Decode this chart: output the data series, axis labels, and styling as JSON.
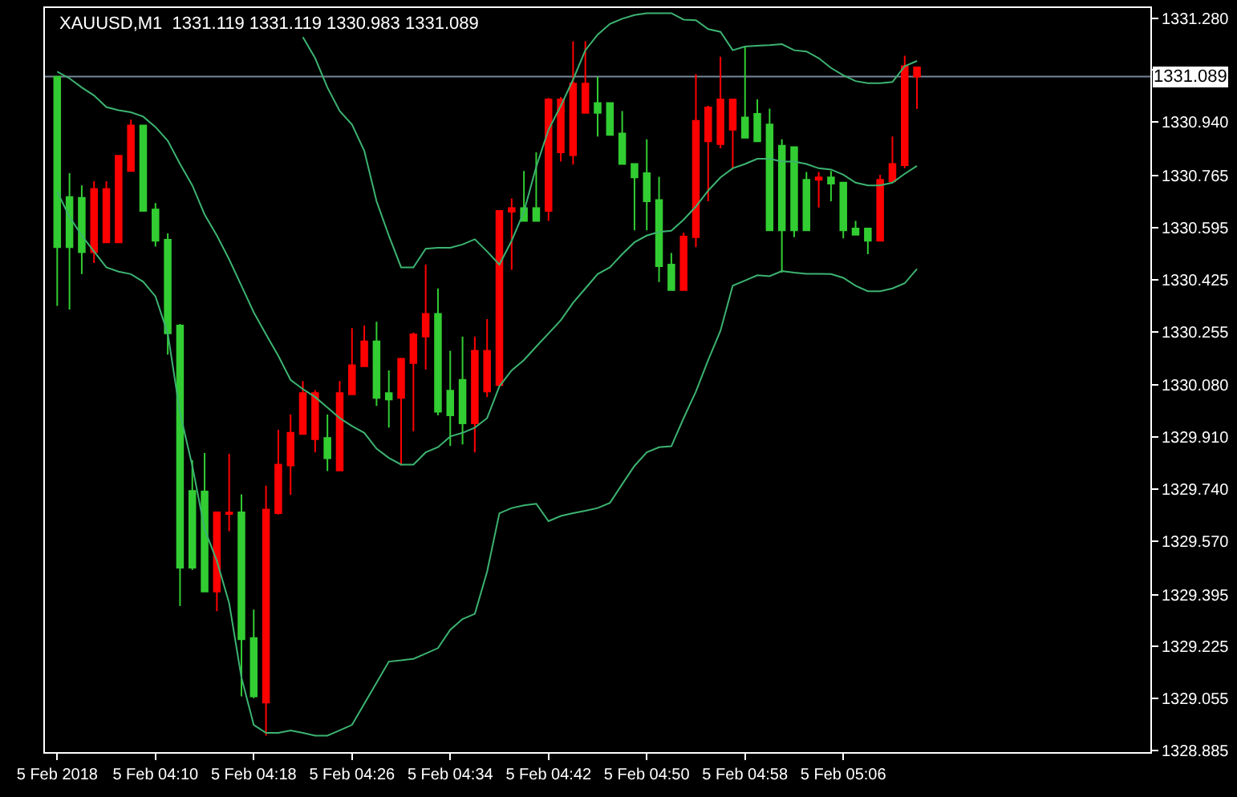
{
  "chart_data": {
    "type": "candlestick",
    "title": "XAUUSD,M1  1331.119 1331.119 1330.983 1331.089",
    "x": [
      "2018-02-05T04:02",
      "2018-02-05T04:03",
      "2018-02-05T04:04",
      "2018-02-05T04:05",
      "2018-02-05T04:06",
      "2018-02-05T04:07",
      "2018-02-05T04:08",
      "2018-02-05T04:09",
      "2018-02-05T04:10",
      "2018-02-05T04:11",
      "2018-02-05T04:12",
      "2018-02-05T04:13",
      "2018-02-05T04:14",
      "2018-02-05T04:15",
      "2018-02-05T04:16",
      "2018-02-05T04:17",
      "2018-02-05T04:18",
      "2018-02-05T04:19",
      "2018-02-05T04:20",
      "2018-02-05T04:21",
      "2018-02-05T04:22",
      "2018-02-05T04:23",
      "2018-02-05T04:24",
      "2018-02-05T04:25",
      "2018-02-05T04:26",
      "2018-02-05T04:27",
      "2018-02-05T04:28",
      "2018-02-05T04:29",
      "2018-02-05T04:30",
      "2018-02-05T04:31",
      "2018-02-05T04:32",
      "2018-02-05T04:33",
      "2018-02-05T04:34",
      "2018-02-05T04:35",
      "2018-02-05T04:36",
      "2018-02-05T04:37",
      "2018-02-05T04:38",
      "2018-02-05T04:39",
      "2018-02-05T04:40",
      "2018-02-05T04:41",
      "2018-02-05T04:42",
      "2018-02-05T04:43",
      "2018-02-05T04:44",
      "2018-02-05T04:45",
      "2018-02-05T04:46",
      "2018-02-05T04:47",
      "2018-02-05T04:48",
      "2018-02-05T04:49",
      "2018-02-05T04:50",
      "2018-02-05T04:51",
      "2018-02-05T04:52",
      "2018-02-05T04:53",
      "2018-02-05T04:54",
      "2018-02-05T04:55",
      "2018-02-05T04:56",
      "2018-02-05T04:57",
      "2018-02-05T04:58",
      "2018-02-05T04:59",
      "2018-02-05T05:00",
      "2018-02-05T05:01",
      "2018-02-05T05:02",
      "2018-02-05T05:03",
      "2018-02-05T05:04",
      "2018-02-05T05:05",
      "2018-02-05T05:06",
      "2018-02-05T05:07",
      "2018-02-05T05:08",
      "2018-02-05T05:09",
      "2018-02-05T05:10",
      "2018-02-05T05:11",
      "2018-02-05T05:12"
    ],
    "ohlc": [
      [
        1330.531,
        1331.088,
        1330.339,
        1331.088
      ],
      [
        1330.531,
        1330.773,
        1330.327,
        1330.695
      ],
      [
        1330.515,
        1330.733,
        1330.443,
        1330.692
      ],
      [
        1330.721,
        1330.747,
        1330.479,
        1330.515
      ],
      [
        1330.721,
        1330.747,
        1330.547,
        1330.547
      ],
      [
        1330.83,
        1330.83,
        1330.547,
        1330.547
      ],
      [
        1330.929,
        1330.948,
        1330.78,
        1330.78
      ],
      [
        1330.65,
        1330.929,
        1330.65,
        1330.929
      ],
      [
        1330.552,
        1330.675,
        1330.533,
        1330.654
      ],
      [
        1330.249,
        1330.576,
        1330.18,
        1330.555
      ],
      [
        1329.483,
        1330.28,
        1329.358,
        1330.275
      ],
      [
        1329.483,
        1329.834,
        1329.476,
        1329.734
      ],
      [
        1329.405,
        1329.858,
        1329.405,
        1329.732
      ],
      [
        1329.664,
        1329.664,
        1329.341,
        1329.405
      ],
      [
        1329.663,
        1329.855,
        1329.602,
        1329.659
      ],
      [
        1329.249,
        1329.723,
        1329.062,
        1329.664
      ],
      [
        1329.062,
        1329.346,
        1329.056,
        1329.253
      ],
      [
        1329.673,
        1329.751,
        1328.934,
        1329.042
      ],
      [
        1329.82,
        1329.934,
        1329.657,
        1329.661
      ],
      [
        1329.924,
        1329.984,
        1329.721,
        1329.817
      ],
      [
        1330.054,
        1330.093,
        1329.92,
        1329.92
      ],
      [
        1330.054,
        1330.064,
        1329.86,
        1329.903
      ],
      [
        1329.841,
        1329.984,
        1329.799,
        1329.907
      ],
      [
        1330.054,
        1330.093,
        1329.799,
        1329.801
      ],
      [
        1330.145,
        1330.266,
        1330.05,
        1330.05
      ],
      [
        1330.223,
        1330.275,
        1330.142,
        1330.142
      ],
      [
        1330.038,
        1330.287,
        1330.012,
        1330.223
      ],
      [
        1330.033,
        1330.128,
        1329.941,
        1330.054
      ],
      [
        1330.166,
        1330.169,
        1329.817,
        1330.038
      ],
      [
        1330.246,
        1330.252,
        1329.929,
        1330.152
      ],
      [
        1330.313,
        1330.474,
        1330.131,
        1330.239
      ],
      [
        1329.993,
        1330.396,
        1329.981,
        1330.313
      ],
      [
        1329.981,
        1330.192,
        1329.881,
        1330.062
      ],
      [
        1329.955,
        1330.239,
        1329.886,
        1330.097
      ],
      [
        1330.192,
        1330.239,
        1329.86,
        1329.955
      ],
      [
        1330.192,
        1330.296,
        1330.041,
        1330.059
      ],
      [
        1330.65,
        1330.65,
        1330.08,
        1330.08
      ],
      [
        1330.659,
        1330.69,
        1330.457,
        1330.647
      ],
      [
        1330.617,
        1330.78,
        1330.617,
        1330.659
      ],
      [
        1330.617,
        1330.841,
        1330.617,
        1330.659
      ],
      [
        1331.014,
        1331.019,
        1330.617,
        1330.65
      ],
      [
        1331.014,
        1331.022,
        1330.811,
        1330.841
      ],
      [
        1331.066,
        1331.204,
        1330.801,
        1330.832
      ],
      [
        1331.066,
        1331.204,
        1330.97,
        1330.97
      ],
      [
        1330.97,
        1331.088,
        1330.893,
        1331.002
      ],
      [
        1330.898,
        1331.002,
        1330.898,
        1331.002
      ],
      [
        1330.803,
        1330.976,
        1330.803,
        1330.903
      ],
      [
        1330.759,
        1330.803,
        1330.586,
        1330.803
      ],
      [
        1330.681,
        1330.884,
        1330.586,
        1330.773
      ],
      [
        1330.469,
        1330.761,
        1330.417,
        1330.685
      ],
      [
        1330.391,
        1330.512,
        1330.391,
        1330.474
      ],
      [
        1330.566,
        1330.578,
        1330.391,
        1330.391
      ],
      [
        1330.944,
        1331.097,
        1330.531,
        1330.564
      ],
      [
        1330.988,
        1330.993,
        1330.681,
        1330.877
      ],
      [
        1331.014,
        1331.154,
        1330.854,
        1330.868
      ],
      [
        1331.014,
        1331.014,
        1330.789,
        1330.915
      ],
      [
        1330.889,
        1331.187,
        1330.889,
        1330.955
      ],
      [
        1330.877,
        1331.014,
        1330.877,
        1330.967
      ],
      [
        1330.586,
        1330.984,
        1330.586,
        1330.932
      ],
      [
        1330.586,
        1330.884,
        1330.448,
        1330.863
      ],
      [
        1330.586,
        1330.86,
        1330.564,
        1330.858
      ],
      [
        1330.586,
        1330.777,
        1330.586,
        1330.751
      ],
      [
        1330.759,
        1330.777,
        1330.661,
        1330.751
      ],
      [
        1330.739,
        1330.78,
        1330.681,
        1330.759
      ],
      [
        1330.586,
        1330.742,
        1330.56,
        1330.742
      ],
      [
        1330.572,
        1330.617,
        1330.572,
        1330.592
      ],
      [
        1330.552,
        1330.592,
        1330.508,
        1330.592
      ],
      [
        1330.751,
        1330.768,
        1330.552,
        1330.552
      ],
      [
        1330.803,
        1330.893,
        1330.742,
        1330.747
      ],
      [
        1331.123,
        1331.157,
        1330.789,
        1330.799
      ],
      [
        1331.119,
        1331.119,
        1330.983,
        1331.089
      ]
    ],
    "colors": [
      "#32cd32",
      "#32cd32",
      "#32cd32",
      "#ff0000",
      "#ff0000",
      "#ff0000",
      "#ff0000",
      "#32cd32",
      "#32cd32",
      "#32cd32",
      "#32cd32",
      "#32cd32",
      "#32cd32",
      "#ff0000",
      "#ff0000",
      "#32cd32",
      "#32cd32",
      "#ff0000",
      "#ff0000",
      "#ff0000",
      "#ff0000",
      "#ff0000",
      "#32cd32",
      "#ff0000",
      "#ff0000",
      "#ff0000",
      "#32cd32",
      "#32cd32",
      "#ff0000",
      "#ff0000",
      "#ff0000",
      "#32cd32",
      "#32cd32",
      "#32cd32",
      "#ff0000",
      "#ff0000",
      "#ff0000",
      "#ff0000",
      "#32cd32",
      "#32cd32",
      "#ff0000",
      "#ff0000",
      "#ff0000",
      "#ff0000",
      "#32cd32",
      "#32cd32",
      "#32cd32",
      "#32cd32",
      "#32cd32",
      "#32cd32",
      "#32cd32",
      "#ff0000",
      "#ff0000",
      "#ff0000",
      "#ff0000",
      "#ff0000",
      "#32cd32",
      "#32cd32",
      "#32cd32",
      "#32cd32",
      "#32cd32",
      "#32cd32",
      "#ff0000",
      "#32cd32",
      "#32cd32",
      "#32cd32",
      "#32cd32",
      "#ff0000",
      "#ff0000",
      "#ff0000",
      "#ff0000"
    ],
    "series": [
      {
        "type": "line",
        "color": "#3cb371",
        "values": [
          null,
          null,
          null,
          null,
          null,
          null,
          null,
          null,
          null,
          null,
          null,
          null,
          null,
          null,
          null,
          null,
          null,
          null,
          null,
          null,
          1331.218,
          1331.149,
          1331.053,
          1330.976,
          1330.932,
          1330.846,
          1330.681,
          1330.569,
          1330.465,
          1330.465,
          1330.526,
          1330.529,
          1330.529,
          1330.54,
          1330.557,
          1330.517,
          1330.474,
          1330.552,
          1330.647,
          1330.794,
          1330.915,
          1330.993,
          1331.079,
          1331.175,
          1331.226,
          1331.261,
          1331.278,
          1331.29,
          1331.296,
          1331.296,
          1331.296,
          1331.275,
          1331.273,
          1331.244,
          1331.235,
          1331.175,
          1331.187,
          1331.19,
          1331.192,
          1331.195,
          1331.175,
          1331.171,
          1331.149,
          1331.117,
          1331.093,
          1331.074,
          1331.067,
          1331.067,
          1331.071,
          1331.123,
          1331.14
        ]
      },
      {
        "type": "line",
        "color": "#3cb371",
        "values": [
          1331.105,
          1331.083,
          1331.053,
          1331.027,
          1330.989,
          1330.979,
          1330.972,
          1330.958,
          1330.924,
          1330.879,
          1330.803,
          1330.733,
          1330.638,
          1330.569,
          1330.491,
          1330.405,
          1330.318,
          1330.246,
          1330.176,
          1330.097,
          1330.067,
          1330.041,
          1330.007,
          1329.972,
          1329.946,
          1329.924,
          1329.872,
          1329.842,
          1329.82,
          1329.82,
          1329.86,
          1329.877,
          1329.912,
          1329.924,
          1329.941,
          1329.972,
          1330.076,
          1330.128,
          1330.162,
          1330.206,
          1330.249,
          1330.292,
          1330.349,
          1330.396,
          1330.443,
          1330.465,
          1330.508,
          1330.547,
          1330.569,
          1330.581,
          1330.585,
          1330.621,
          1330.664,
          1330.716,
          1330.759,
          1330.789,
          1330.803,
          1330.82,
          1330.82,
          1330.811,
          1330.811,
          1330.803,
          1330.789,
          1330.785,
          1330.768,
          1330.742,
          1330.733,
          1330.733,
          1330.742,
          1330.771,
          1330.797
        ]
      },
      {
        "type": "line",
        "color": "#3cb371",
        "values": [
          1330.713,
          1330.63,
          1330.569,
          1330.517,
          1330.465,
          1330.451,
          1330.443,
          1330.418,
          1330.37,
          1330.249,
          1329.989,
          1329.816,
          1329.609,
          1329.505,
          1329.367,
          1329.124,
          1328.969,
          1328.943,
          1328.943,
          1328.951,
          1328.943,
          1328.934,
          1328.934,
          1328.951,
          1328.969,
          1329.038,
          1329.107,
          1329.176,
          1329.18,
          1329.185,
          1329.202,
          1329.22,
          1329.28,
          1329.315,
          1329.332,
          1329.47,
          1329.661,
          1329.678,
          1329.687,
          1329.692,
          1329.635,
          1329.652,
          1329.661,
          1329.669,
          1329.678,
          1329.695,
          1329.756,
          1329.816,
          1329.86,
          1329.877,
          1329.88,
          1329.972,
          1330.059,
          1330.162,
          1330.258,
          1330.405,
          1330.422,
          1330.439,
          1330.436,
          1330.453,
          1330.448,
          1330.444,
          1330.444,
          1330.443,
          1330.431,
          1330.405,
          1330.387,
          1330.387,
          1330.396,
          1330.413,
          1330.46
        ]
      }
    ],
    "ref_lines": [
      {
        "axis": "y",
        "value": 1331.089,
        "label": "1331.089",
        "color": "#778899"
      }
    ],
    "xlim": [
      "2018-02-05T04:01",
      "2018-02-05T05:31"
    ],
    "xticks": [
      {
        "value": "2018-02-05T04:02",
        "label": "5 Feb 2018"
      },
      {
        "value": "2018-02-05T04:10",
        "label": "5 Feb 04:10"
      },
      {
        "value": "2018-02-05T04:18",
        "label": "5 Feb 04:18"
      },
      {
        "value": "2018-02-05T04:26",
        "label": "5 Feb 04:26"
      },
      {
        "value": "2018-02-05T04:34",
        "label": "5 Feb 04:34"
      },
      {
        "value": "2018-02-05T04:42",
        "label": "5 Feb 04:42"
      },
      {
        "value": "2018-02-05T04:50",
        "label": "5 Feb 04:50"
      },
      {
        "value": "2018-02-05T04:58",
        "label": "5 Feb 04:58"
      },
      {
        "value": "2018-02-05T05:06",
        "label": "5 Feb 05:06"
      }
    ],
    "ylim": [
      1328.88,
      1331.313
    ],
    "yticks": [
      {
        "value": 1331.28,
        "label": "1331.280"
      },
      {
        "value": 1331.11,
        "label": null
      },
      {
        "value": 1330.94,
        "label": "1330.940"
      },
      1330.765,
      1330.595,
      1330.425,
      1330.255,
      {
        "value": 1330.08,
        "label": "1330.080"
      },
      {
        "value": 1329.91,
        "label": "1329.910"
      },
      {
        "value": 1329.74,
        "label": "1329.740"
      },
      {
        "value": 1329.57,
        "label": "1329.570"
      },
      1329.395,
      1329.225,
      1329.055,
      1328.885
    ],
    "grid": false
  }
}
